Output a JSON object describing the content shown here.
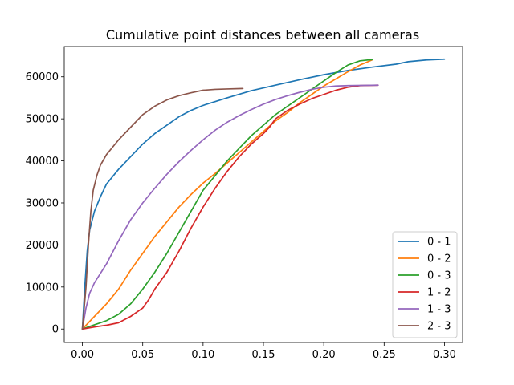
{
  "chart_data": {
    "type": "line",
    "title": "Cumulative point distances between all cameras",
    "xlabel": "",
    "ylabel": "",
    "xlim": [
      -0.015,
      0.315
    ],
    "ylim": [
      -3200,
      67200
    ],
    "xticks": [
      0.0,
      0.05,
      0.1,
      0.15,
      0.2,
      0.25,
      0.3
    ],
    "xtick_labels": [
      "0.00",
      "0.05",
      "0.10",
      "0.15",
      "0.20",
      "0.25",
      "0.30"
    ],
    "yticks": [
      0,
      10000,
      20000,
      30000,
      40000,
      50000,
      60000
    ],
    "ytick_labels": [
      "0",
      "10000",
      "20000",
      "30000",
      "40000",
      "50000",
      "60000"
    ],
    "grid": false,
    "legend_position": "lower-right",
    "series": [
      {
        "name": "0 - 1",
        "color": "#1f77b4",
        "points": [
          [
            0,
            0
          ],
          [
            0.002,
            10000
          ],
          [
            0.004,
            18500
          ],
          [
            0.006,
            23500
          ],
          [
            0.01,
            28000
          ],
          [
            0.015,
            31500
          ],
          [
            0.02,
            34500
          ],
          [
            0.03,
            38000
          ],
          [
            0.04,
            41000
          ],
          [
            0.05,
            44000
          ],
          [
            0.06,
            46500
          ],
          [
            0.07,
            48500
          ],
          [
            0.08,
            50500
          ],
          [
            0.09,
            52000
          ],
          [
            0.1,
            53200
          ],
          [
            0.12,
            55000
          ],
          [
            0.14,
            56700
          ],
          [
            0.16,
            58000
          ],
          [
            0.18,
            59300
          ],
          [
            0.2,
            60500
          ],
          [
            0.22,
            61500
          ],
          [
            0.24,
            62300
          ],
          [
            0.26,
            63000
          ],
          [
            0.27,
            63600
          ],
          [
            0.285,
            64000
          ],
          [
            0.3,
            64200
          ]
        ]
      },
      {
        "name": "0 - 2",
        "color": "#ff7f0e",
        "points": [
          [
            0,
            0
          ],
          [
            0.01,
            3000
          ],
          [
            0.02,
            6000
          ],
          [
            0.03,
            9500
          ],
          [
            0.04,
            14000
          ],
          [
            0.05,
            18000
          ],
          [
            0.06,
            22000
          ],
          [
            0.07,
            25500
          ],
          [
            0.08,
            29000
          ],
          [
            0.09,
            32000
          ],
          [
            0.1,
            34700
          ],
          [
            0.11,
            37000
          ],
          [
            0.12,
            39500
          ],
          [
            0.13,
            42000
          ],
          [
            0.14,
            44500
          ],
          [
            0.15,
            47000
          ],
          [
            0.16,
            49500
          ],
          [
            0.17,
            51500
          ],
          [
            0.18,
            53800
          ],
          [
            0.19,
            55800
          ],
          [
            0.2,
            57800
          ],
          [
            0.21,
            59500
          ],
          [
            0.22,
            61200
          ],
          [
            0.23,
            62800
          ],
          [
            0.24,
            64000
          ]
        ]
      },
      {
        "name": "0 - 3",
        "color": "#2ca02c",
        "points": [
          [
            0,
            0
          ],
          [
            0.01,
            1000
          ],
          [
            0.02,
            2000
          ],
          [
            0.03,
            3500
          ],
          [
            0.04,
            6000
          ],
          [
            0.05,
            9500
          ],
          [
            0.06,
            13500
          ],
          [
            0.07,
            18000
          ],
          [
            0.08,
            23000
          ],
          [
            0.09,
            28000
          ],
          [
            0.1,
            33000
          ],
          [
            0.11,
            36500
          ],
          [
            0.12,
            40000
          ],
          [
            0.13,
            43000
          ],
          [
            0.14,
            46000
          ],
          [
            0.15,
            48500
          ],
          [
            0.16,
            51000
          ],
          [
            0.17,
            53000
          ],
          [
            0.18,
            55000
          ],
          [
            0.19,
            57000
          ],
          [
            0.2,
            59000
          ],
          [
            0.21,
            61000
          ],
          [
            0.22,
            62800
          ],
          [
            0.23,
            63800
          ],
          [
            0.24,
            64100
          ]
        ]
      },
      {
        "name": "1 - 2",
        "color": "#d62728",
        "points": [
          [
            0,
            0
          ],
          [
            0.01,
            500
          ],
          [
            0.02,
            900
          ],
          [
            0.03,
            1500
          ],
          [
            0.04,
            3000
          ],
          [
            0.05,
            5000
          ],
          [
            0.055,
            7000
          ],
          [
            0.06,
            9500
          ],
          [
            0.07,
            13500
          ],
          [
            0.08,
            18500
          ],
          [
            0.09,
            24000
          ],
          [
            0.1,
            29000
          ],
          [
            0.11,
            33500
          ],
          [
            0.12,
            37500
          ],
          [
            0.13,
            41000
          ],
          [
            0.14,
            44000
          ],
          [
            0.15,
            46500
          ],
          [
            0.155,
            48000
          ],
          [
            0.16,
            50000
          ],
          [
            0.17,
            52000
          ],
          [
            0.18,
            53500
          ],
          [
            0.19,
            54800
          ],
          [
            0.2,
            55800
          ],
          [
            0.21,
            56800
          ],
          [
            0.22,
            57500
          ],
          [
            0.23,
            57900
          ],
          [
            0.245,
            58000
          ]
        ]
      },
      {
        "name": "1 - 3",
        "color": "#9467bd",
        "points": [
          [
            0,
            0
          ],
          [
            0.003,
            5000
          ],
          [
            0.006,
            8500
          ],
          [
            0.01,
            11000
          ],
          [
            0.02,
            15500
          ],
          [
            0.03,
            21000
          ],
          [
            0.04,
            26000
          ],
          [
            0.05,
            30000
          ],
          [
            0.06,
            33500
          ],
          [
            0.07,
            36800
          ],
          [
            0.08,
            39800
          ],
          [
            0.09,
            42500
          ],
          [
            0.1,
            45000
          ],
          [
            0.11,
            47300
          ],
          [
            0.12,
            49200
          ],
          [
            0.13,
            50800
          ],
          [
            0.14,
            52200
          ],
          [
            0.15,
            53500
          ],
          [
            0.16,
            54600
          ],
          [
            0.17,
            55500
          ],
          [
            0.18,
            56300
          ],
          [
            0.19,
            57000
          ],
          [
            0.2,
            57500
          ],
          [
            0.21,
            57800
          ],
          [
            0.22,
            57900
          ],
          [
            0.245,
            58000
          ]
        ]
      },
      {
        "name": "2 - 3",
        "color": "#8c564b",
        "points": [
          [
            0,
            0
          ],
          [
            0.003,
            10000
          ],
          [
            0.005,
            20000
          ],
          [
            0.007,
            28000
          ],
          [
            0.009,
            33000
          ],
          [
            0.012,
            36500
          ],
          [
            0.015,
            39000
          ],
          [
            0.02,
            41500
          ],
          [
            0.03,
            45000
          ],
          [
            0.04,
            48000
          ],
          [
            0.05,
            51000
          ],
          [
            0.06,
            53000
          ],
          [
            0.07,
            54500
          ],
          [
            0.08,
            55500
          ],
          [
            0.09,
            56200
          ],
          [
            0.1,
            56800
          ],
          [
            0.11,
            57000
          ],
          [
            0.12,
            57100
          ],
          [
            0.133,
            57200
          ]
        ]
      }
    ]
  }
}
